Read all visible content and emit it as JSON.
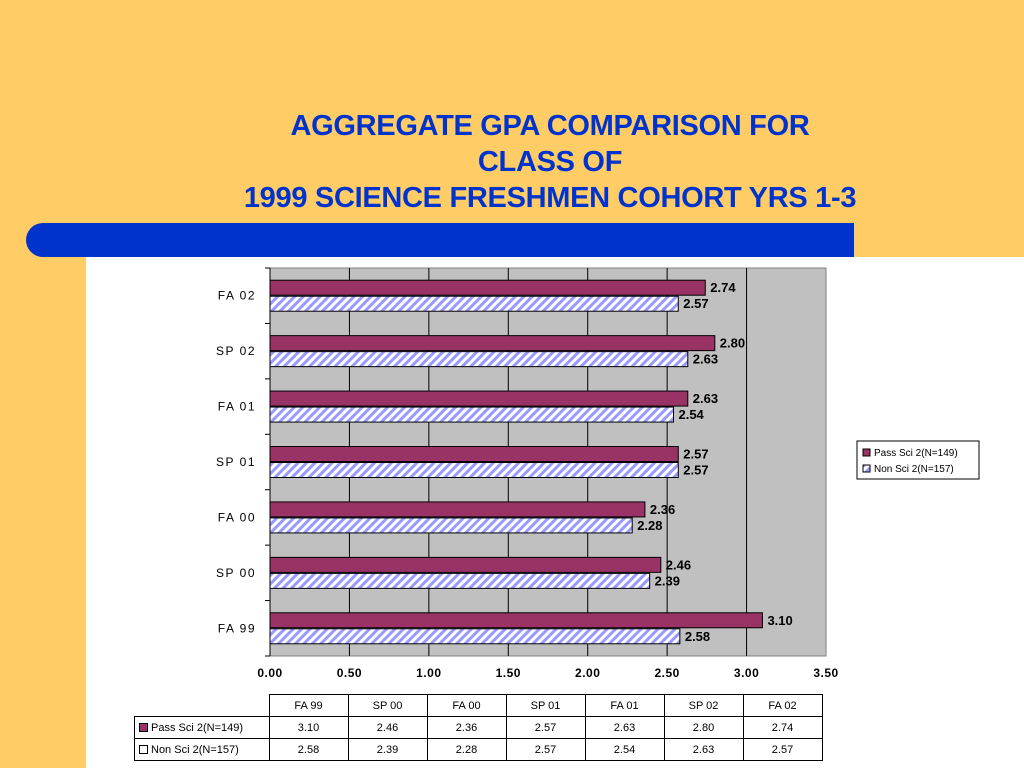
{
  "title_lines": [
    "AGGREGATE GPA COMPARISON FOR",
    "CLASS OF",
    "1999 SCIENCE FRESHMEN COHORT YRS 1-3"
  ],
  "colors": {
    "background": "#FFCC66",
    "title": "#0033CC",
    "accent_bar": "#0033CC",
    "plot_area": "#C0C0C0",
    "pass_series": "#993366",
    "non_series_stripe": "#9999FF"
  },
  "chart_data": {
    "type": "bar",
    "orientation": "horizontal",
    "categories": [
      "FA 02",
      "SP 02",
      "FA 01",
      "SP 01",
      "FA 00",
      "SP 00",
      "FA 99"
    ],
    "series": [
      {
        "name": "Pass Sci 2(N=149)",
        "values": [
          2.74,
          2.8,
          2.63,
          2.57,
          2.36,
          2.46,
          3.1
        ],
        "labels": [
          "2.74",
          "2.80",
          "2.63",
          "2.57",
          "2.36",
          "2.46",
          "3.10"
        ]
      },
      {
        "name": "Non Sci 2(N=157)",
        "values": [
          2.57,
          2.63,
          2.54,
          2.57,
          2.28,
          2.39,
          2.58
        ],
        "labels": [
          "2.57",
          "2.63",
          "2.54",
          "2.57",
          "2.28",
          "2.39",
          "2.58"
        ]
      }
    ],
    "xlim": [
      0,
      3.5
    ],
    "ticks": [
      "0.00",
      "0.50",
      "1.00",
      "1.50",
      "2.00",
      "2.50",
      "3.00",
      "3.50"
    ],
    "grid": true,
    "legend_position": "right"
  },
  "data_table": {
    "columns": [
      "FA 99",
      "SP 00",
      "FA 00",
      "SP 01",
      "FA 01",
      "SP 02",
      "FA 02"
    ],
    "rows": [
      {
        "label": "Pass Sci 2(N=149)",
        "values": [
          "3.10",
          "2.46",
          "2.36",
          "2.57",
          "2.63",
          "2.80",
          "2.74"
        ]
      },
      {
        "label": "Non Sci 2(N=157)",
        "values": [
          "2.58",
          "2.39",
          "2.28",
          "2.57",
          "2.54",
          "2.63",
          "2.57"
        ]
      }
    ]
  }
}
